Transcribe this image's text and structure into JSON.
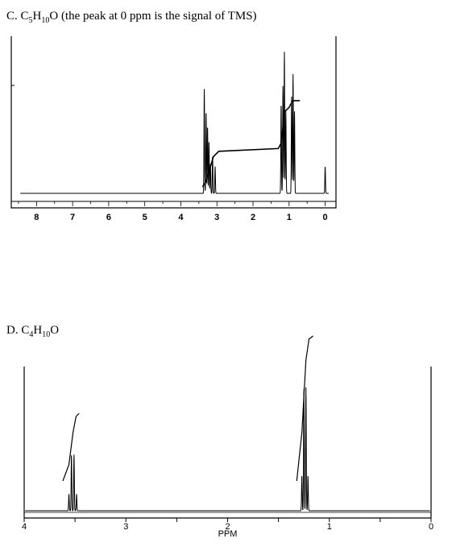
{
  "chart_data": [
    {
      "type": "line",
      "title_prefix": "C. C",
      "title_sub1": "5",
      "title_mid": "H",
      "title_sub2": "10",
      "title_suffix": "O (the peak at 0 ppm is the signal of TMS)",
      "xlabel": "",
      "x_ticks": [
        "8",
        "7",
        "6",
        "5",
        "4",
        "3",
        "2",
        "1",
        "0"
      ],
      "xlim": [
        8.7,
        -0.3
      ],
      "reversed_x": true,
      "peaks": [
        {
          "ppm": 3.35,
          "h": 0.7
        },
        {
          "ppm": 3.3,
          "h": 0.55
        },
        {
          "ppm": 3.26,
          "h": 0.45
        },
        {
          "ppm": 3.22,
          "h": 0.35
        },
        {
          "ppm": 3.18,
          "h": 0.2
        },
        {
          "ppm": 3.12,
          "h": 0.25
        },
        {
          "ppm": 3.05,
          "h": 0.18
        },
        {
          "ppm": 1.22,
          "h": 0.6
        },
        {
          "ppm": 1.17,
          "h": 0.72
        },
        {
          "ppm": 1.13,
          "h": 0.95
        },
        {
          "ppm": 1.09,
          "h": 0.55
        },
        {
          "ppm": 0.93,
          "h": 0.65
        },
        {
          "ppm": 0.89,
          "h": 0.8
        },
        {
          "ppm": 0.85,
          "h": 0.55
        },
        {
          "ppm": 0.0,
          "h": 0.18
        }
      ],
      "integral": [
        {
          "ppm": 3.4,
          "level": 0.0
        },
        {
          "ppm": 3.3,
          "level": 0.04
        },
        {
          "ppm": 3.1,
          "level": 0.22
        },
        {
          "ppm": 2.95,
          "level": 0.26
        },
        {
          "ppm": 1.3,
          "level": 0.28
        },
        {
          "ppm": 1.22,
          "level": 0.32
        },
        {
          "ppm": 1.12,
          "level": 0.55
        },
        {
          "ppm": 1.0,
          "level": 0.58
        },
        {
          "ppm": 0.9,
          "level": 0.63
        },
        {
          "ppm": 0.7,
          "level": 0.63
        }
      ]
    },
    {
      "type": "line",
      "title_prefix": "D. C",
      "title_sub1": "4",
      "title_mid": "H",
      "title_sub2": "10",
      "title_suffix": "O",
      "xlabel": "PPM",
      "x_ticks": [
        "4",
        "3",
        "2",
        "1",
        "0"
      ],
      "xlim": [
        4.0,
        0.0
      ],
      "reversed_x": true,
      "peaks": [
        {
          "ppm": 3.56,
          "h": 0.12
        },
        {
          "ppm": 3.535,
          "h": 0.4
        },
        {
          "ppm": 3.51,
          "h": 0.4
        },
        {
          "ppm": 3.485,
          "h": 0.12
        },
        {
          "ppm": 1.27,
          "h": 0.25
        },
        {
          "ppm": 1.25,
          "h": 0.88
        },
        {
          "ppm": 1.23,
          "h": 0.88
        },
        {
          "ppm": 1.21,
          "h": 0.25
        }
      ],
      "integral": [
        {
          "ppm": 3.62,
          "level": 0.0
        },
        {
          "ppm": 3.56,
          "level": 0.1
        },
        {
          "ppm": 3.52,
          "level": 0.3
        },
        {
          "ppm": 3.49,
          "level": 0.4
        },
        {
          "ppm": 3.46,
          "level": 0.42
        },
        {
          "ppm": 1.32,
          "level": 0.0
        },
        {
          "ppm": 1.27,
          "level": 0.3
        },
        {
          "ppm": 1.23,
          "level": 0.75
        },
        {
          "ppm": 1.2,
          "level": 0.88
        },
        {
          "ppm": 1.16,
          "level": 0.9
        }
      ]
    }
  ]
}
